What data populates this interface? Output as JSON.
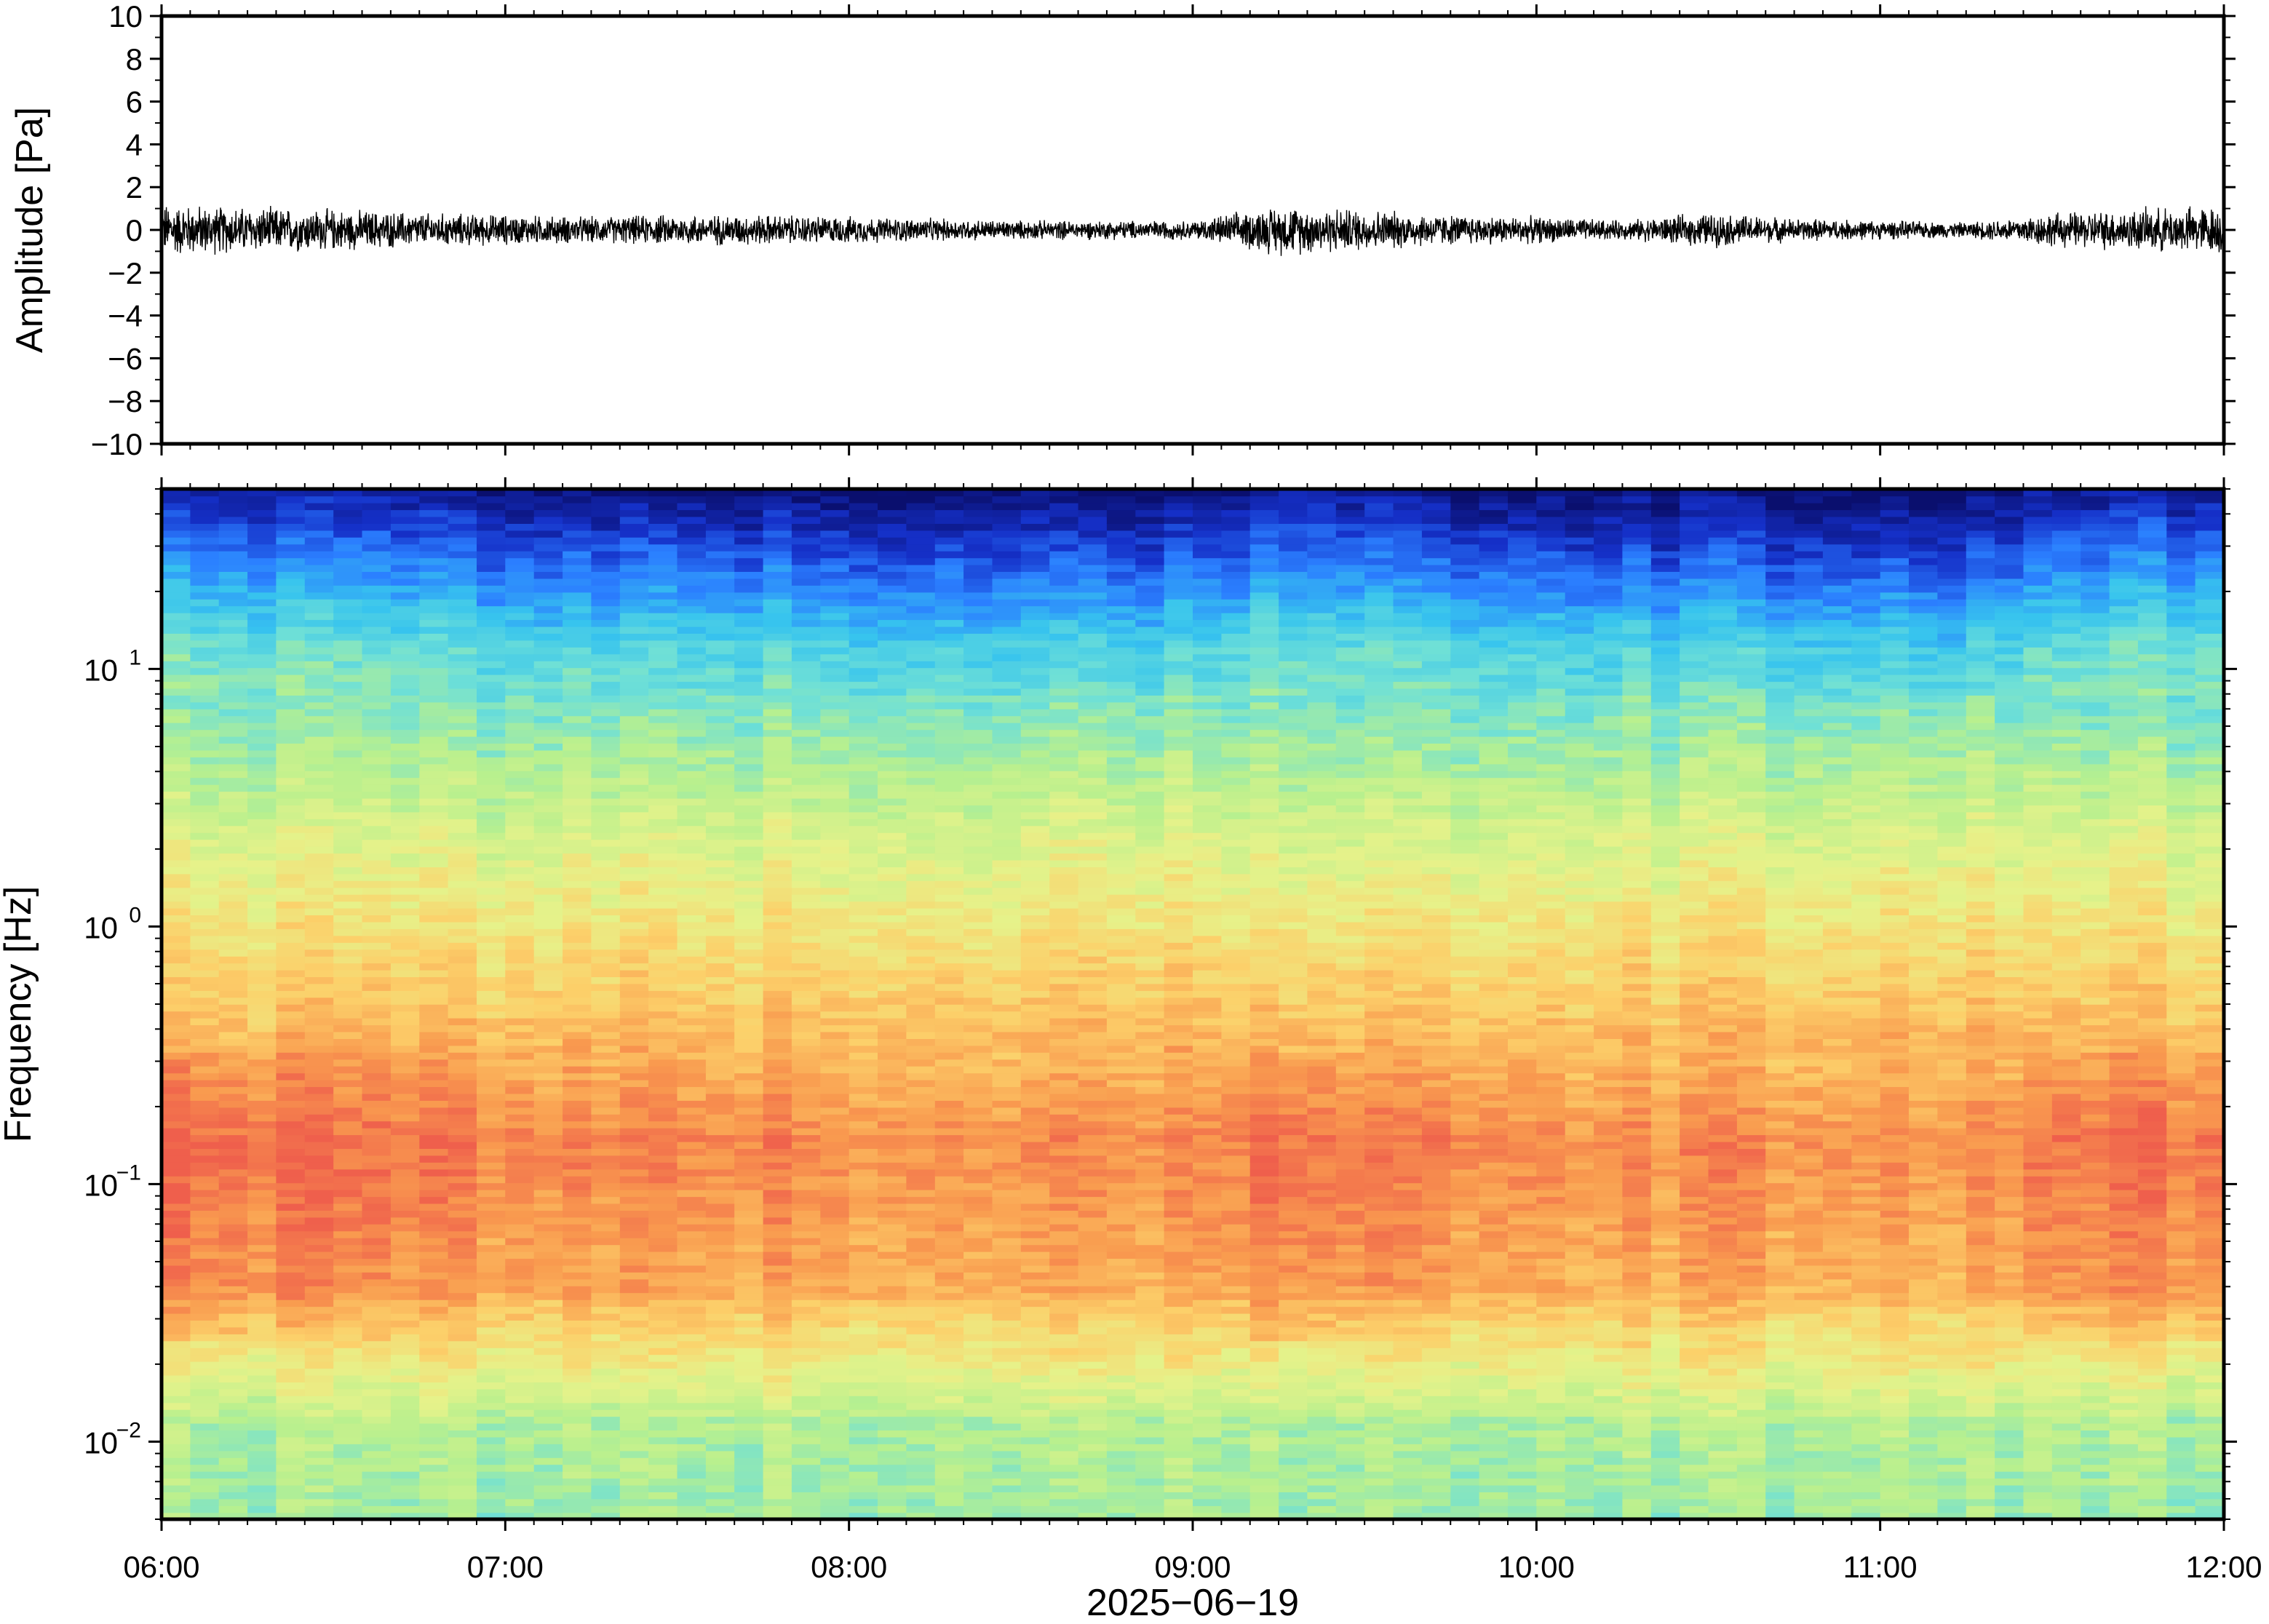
{
  "chart_data": [
    {
      "type": "line",
      "panel": "waveform",
      "ylabel": "Amplitude [Pa]",
      "ylim": [
        -10,
        10
      ],
      "yticks": [
        10,
        8,
        6,
        4,
        2,
        0,
        -2,
        -4,
        -6,
        -8,
        -10
      ],
      "ytick_labels": [
        "10",
        "8",
        "6",
        "4",
        "2",
        "0",
        "−2",
        "−4",
        "−6",
        "−8",
        "−10"
      ],
      "xlim": [
        "06:00",
        "12:00"
      ],
      "grid": false,
      "series": [
        {
          "color": "#000000",
          "x_hours": [
            6.0,
            6.25,
            6.5,
            6.75,
            7.0,
            7.25,
            7.5,
            7.75,
            8.0,
            8.25,
            8.5,
            8.75,
            9.0,
            9.25,
            9.5,
            9.75,
            10.0,
            10.25,
            10.5,
            10.75,
            11.0,
            11.25,
            11.5,
            11.75,
            12.0
          ],
          "envelope_pa": [
            1.4,
            1.2,
            1.1,
            0.9,
            0.8,
            0.7,
            0.8,
            0.8,
            0.7,
            0.6,
            0.5,
            0.5,
            0.5,
            1.3,
            1.1,
            0.8,
            0.7,
            0.5,
            0.9,
            0.6,
            0.5,
            0.4,
            0.9,
            1.1,
            1.3
          ]
        }
      ]
    },
    {
      "type": "heatmap",
      "panel": "spectrogram",
      "ylabel": "Frequency [Hz]",
      "xlabel": "2025−06−19",
      "yscale": "log",
      "ylim": [
        0.005,
        50
      ],
      "yticks": [
        {
          "base": "10",
          "exp": "1"
        },
        {
          "base": "10",
          "exp": "0"
        },
        {
          "base": "10",
          "exp": "−1"
        },
        {
          "base": "10",
          "exp": "−2"
        }
      ],
      "xticks": [
        "06:00",
        "07:00",
        "08:00",
        "09:00",
        "10:00",
        "11:00",
        "12:00"
      ],
      "colormap": [
        "#0a0f6e",
        "#1530c8",
        "#2b7fff",
        "#37c4ee",
        "#6fe0d6",
        "#b8f08e",
        "#e6f28a",
        "#fcd06a",
        "#f99b4f",
        "#ef5f4c"
      ],
      "activity_by_time": [
        1.0,
        1.0,
        0.95,
        0.9,
        0.8,
        0.78,
        0.8,
        0.78,
        0.75,
        0.7,
        0.7,
        0.68,
        0.7,
        1.0,
        0.9,
        0.82,
        0.75,
        0.7,
        0.75,
        0.7,
        0.65,
        0.6,
        0.9,
        0.95,
        1.0
      ]
    }
  ]
}
